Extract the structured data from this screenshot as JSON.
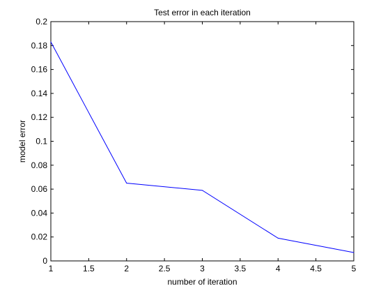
{
  "chart_data": {
    "type": "line",
    "title": "Test error in each iteration",
    "xlabel": "number of iteration",
    "ylabel": "model error",
    "xlim": [
      1,
      5
    ],
    "ylim": [
      0,
      0.2
    ],
    "grid": false,
    "x_ticks": [
      "1",
      "1.5",
      "2",
      "2.5",
      "3",
      "3.5",
      "4",
      "4.5",
      "5"
    ],
    "y_ticks": [
      "0",
      "0.02",
      "0.04",
      "0.06",
      "0.08",
      "0.1",
      "0.12",
      "0.14",
      "0.16",
      "0.18",
      "0.2"
    ],
    "series": [
      {
        "color": "#0000ff",
        "x": [
          1,
          2,
          3,
          4,
          5
        ],
        "y": [
          0.183,
          0.065,
          0.059,
          0.019,
          0.007
        ]
      }
    ]
  }
}
